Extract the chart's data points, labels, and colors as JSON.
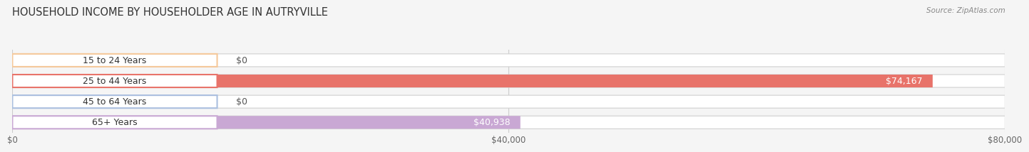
{
  "title": "HOUSEHOLD INCOME BY HOUSEHOLDER AGE IN AUTRYVILLE",
  "source": "Source: ZipAtlas.com",
  "categories": [
    "15 to 24 Years",
    "25 to 44 Years",
    "45 to 64 Years",
    "65+ Years"
  ],
  "values": [
    0,
    74167,
    0,
    40938
  ],
  "bar_colors": [
    "#f5c89a",
    "#e8736a",
    "#aabfdf",
    "#c9a8d4"
  ],
  "bar_bg_color": "#eeeeee",
  "xlim": [
    0,
    80000
  ],
  "xticks": [
    0,
    40000,
    80000
  ],
  "xticklabels": [
    "$0",
    "$40,000",
    "$80,000"
  ],
  "value_labels": [
    "$0",
    "$74,167",
    "$0",
    "$40,938"
  ],
  "background_color": "#f5f5f5",
  "title_fontsize": 10.5,
  "bar_height": 0.62,
  "label_fontsize": 9
}
